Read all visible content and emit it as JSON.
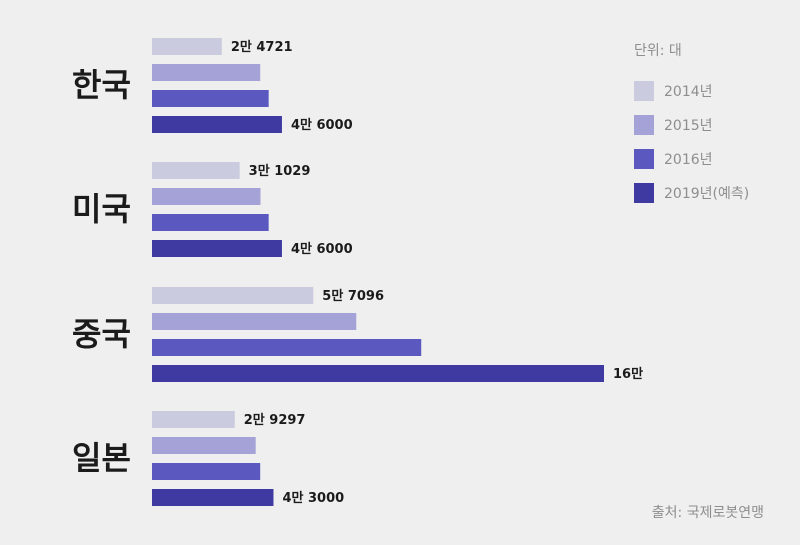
{
  "chart_data": {
    "type": "bar",
    "orientation": "horizontal",
    "categories": [
      "한국",
      "미국",
      "중국",
      "일본"
    ],
    "series": [
      {
        "name": "2014년",
        "color": "#cbcbe0",
        "values": [
          24721,
          31029,
          57096,
          29297
        ],
        "labels": [
          "2만 4721",
          "3만 1029",
          "5만 7096",
          "2만 9297"
        ]
      },
      {
        "name": "2015년",
        "color": "#a4a2d6",
        "values": [
          38300,
          38400,
          72300,
          36700
        ],
        "labels": [
          "",
          "",
          "",
          ""
        ]
      },
      {
        "name": "2016년",
        "color": "#5b58c0",
        "values": [
          41300,
          41300,
          95300,
          38300
        ],
        "labels": [
          "",
          "",
          "",
          ""
        ]
      },
      {
        "name": "2019년(예측)",
        "color": "#3e3aa2",
        "values": [
          46000,
          46000,
          160000,
          43000
        ],
        "labels": [
          "4만 6000",
          "4만 6000",
          "16만",
          "4만 3000"
        ]
      }
    ],
    "unit_label": "단위: 대",
    "legend_position": "top-right",
    "grid": false
  },
  "source": "출처: 국제로봇연맹"
}
